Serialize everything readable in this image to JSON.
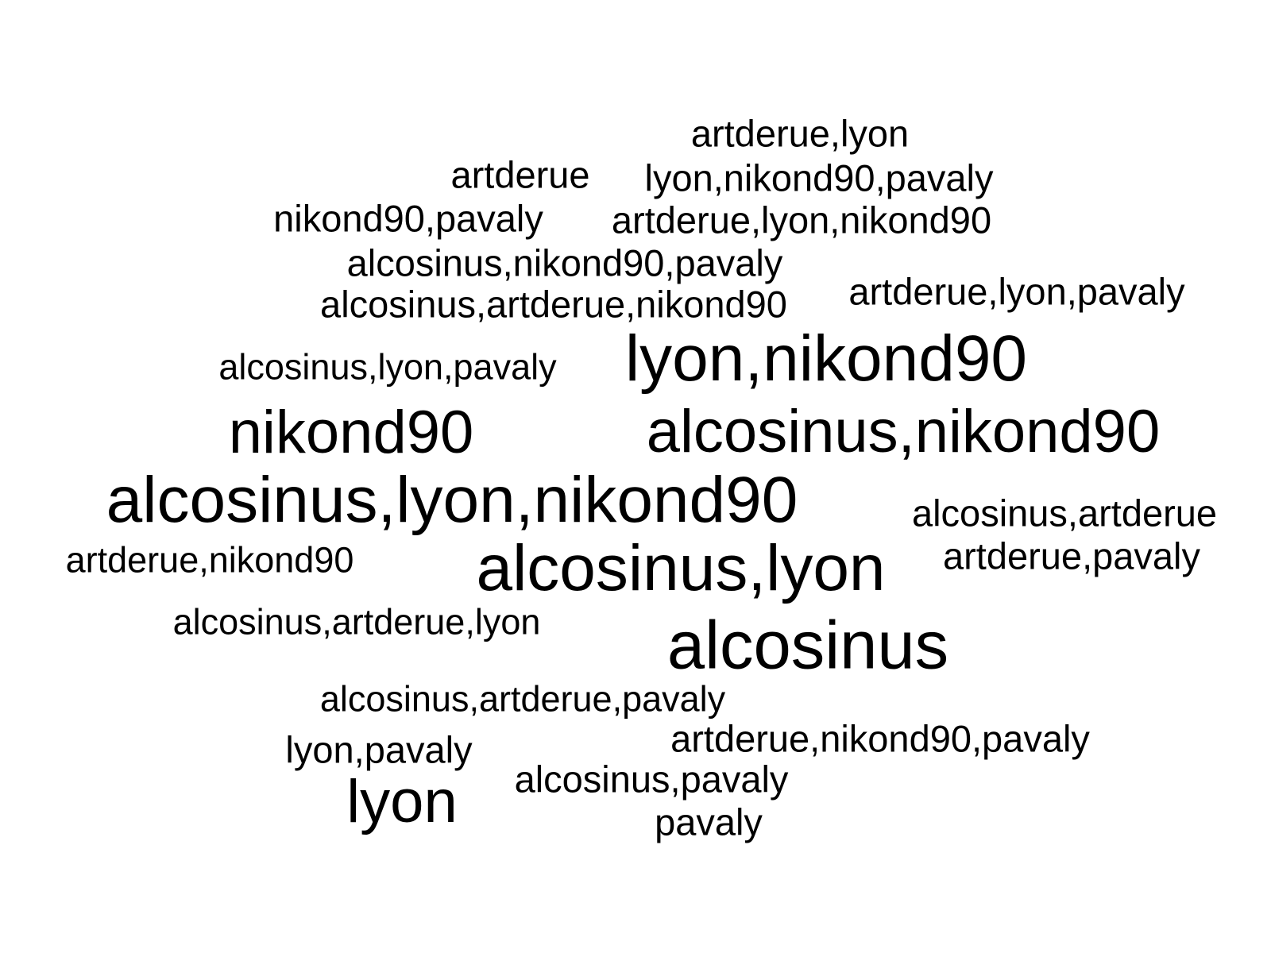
{
  "words": [
    {
      "text": "artderue,lyon",
      "tier": "s-md"
    },
    {
      "text": "artderue",
      "tier": "s-md"
    },
    {
      "text": "lyon,nikond90,pavaly",
      "tier": "s-md"
    },
    {
      "text": "nikond90,pavaly",
      "tier": "s-md"
    },
    {
      "text": "artderue,lyon,nikond90",
      "tier": "s-md"
    },
    {
      "text": "alcosinus,nikond90,pavaly",
      "tier": "s-md"
    },
    {
      "text": "alcosinus,artderue,nikond90",
      "tier": "s-md"
    },
    {
      "text": "artderue,lyon,pavaly",
      "tier": "s-md"
    },
    {
      "text": "alcosinus,lyon,pavaly",
      "tier": "s-sm"
    },
    {
      "text": "lyon,nikond90",
      "tier": "s-xl"
    },
    {
      "text": "nikond90",
      "tier": "s-lg"
    },
    {
      "text": "alcosinus,nikond90",
      "tier": "s-lg"
    },
    {
      "text": "alcosinus,lyon,nikond90",
      "tier": "s-xl"
    },
    {
      "text": "alcosinus,artderue",
      "tier": "s-md"
    },
    {
      "text": "artderue,nikond90",
      "tier": "s-sm"
    },
    {
      "text": "alcosinus,lyon",
      "tier": "s-xl"
    },
    {
      "text": "artderue,pavaly",
      "tier": "s-md"
    },
    {
      "text": "alcosinus,artderue,lyon",
      "tier": "s-sm"
    },
    {
      "text": "alcosinus",
      "tier": "s-xxl"
    },
    {
      "text": "alcosinus,artderue,pavaly",
      "tier": "s-sm"
    },
    {
      "text": "artderue,nikond90,pavaly",
      "tier": "s-md"
    },
    {
      "text": "lyon,pavaly",
      "tier": "s-md"
    },
    {
      "text": "alcosinus,pavaly",
      "tier": "s-md"
    },
    {
      "text": "lyon",
      "tier": "s-lg"
    },
    {
      "text": "pavaly",
      "tier": "s-md"
    }
  ],
  "colors": {
    "background": "#ffffff",
    "text": "#000000"
  }
}
